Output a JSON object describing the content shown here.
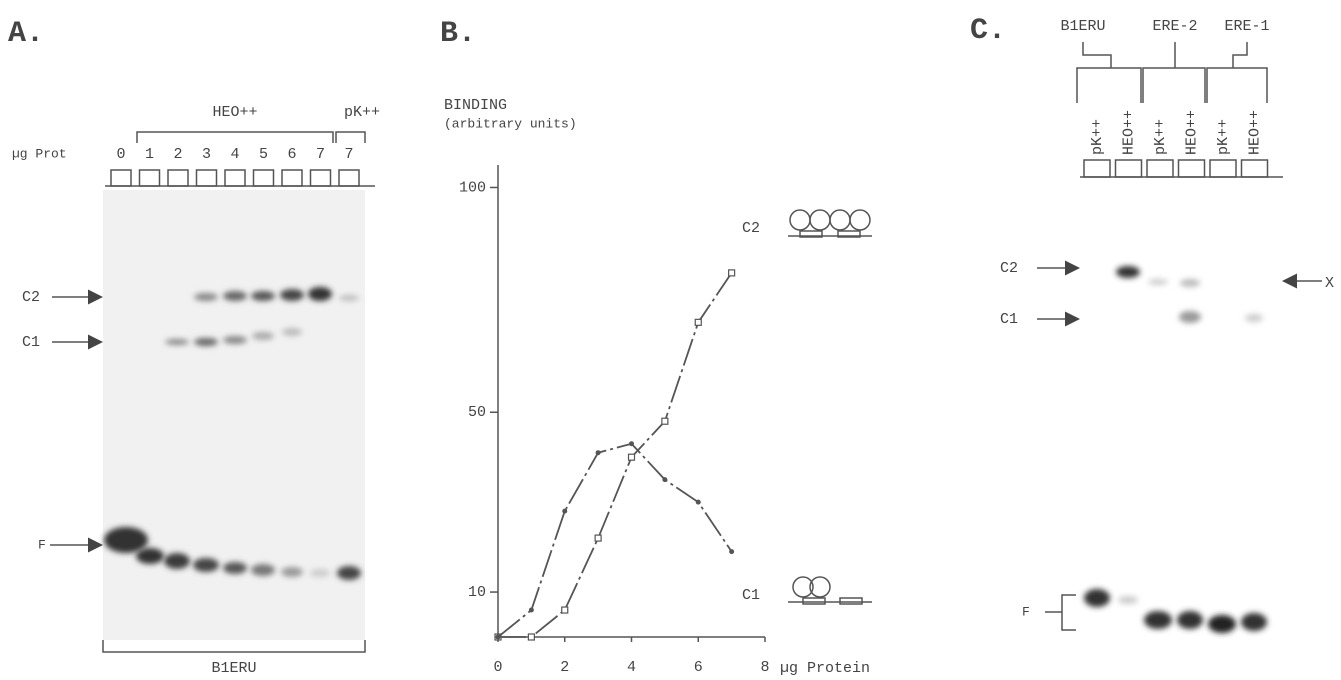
{
  "panel_a": {
    "letter": "A.",
    "group_labels": [
      "HEO++",
      "pK++"
    ],
    "lane_axis_label": "µg Prot",
    "lanes": [
      "0",
      "1",
      "2",
      "3",
      "4",
      "5",
      "6",
      "7",
      "7"
    ],
    "bands": [
      "C2",
      "C1",
      "F"
    ],
    "probe": "B1ERU"
  },
  "chart_data": {
    "type": "line",
    "letter": "B.",
    "y_label": "BINDING",
    "y_label_sub": "(arbitrary units)",
    "x_label": "µg   Protein",
    "x": [
      0,
      1,
      2,
      3,
      4,
      5,
      6,
      7
    ],
    "series": [
      {
        "name": "C2",
        "color": "#555555",
        "marker": "square",
        "values": [
          0,
          0,
          6,
          22,
          40,
          48,
          70,
          81
        ]
      },
      {
        "name": "C1",
        "color": "#555555",
        "marker": "dot",
        "values": [
          0,
          6,
          28,
          41,
          43,
          35,
          30,
          19
        ]
      }
    ],
    "xlim": [
      0,
      8
    ],
    "xticks": [
      0,
      2,
      4,
      6,
      8
    ],
    "ylim": [
      0,
      105
    ],
    "yticks": [
      10,
      50,
      100
    ]
  },
  "panel_c": {
    "letter": "C.",
    "probes": [
      "B1ERU",
      "ERE-2",
      "ERE-1"
    ],
    "lanes": [
      "pK++",
      "HEO++",
      "pK++",
      "HEO++",
      "pK++",
      "HEO++"
    ],
    "bands": [
      "C2",
      "C1",
      "F"
    ],
    "extra_band": "X"
  }
}
